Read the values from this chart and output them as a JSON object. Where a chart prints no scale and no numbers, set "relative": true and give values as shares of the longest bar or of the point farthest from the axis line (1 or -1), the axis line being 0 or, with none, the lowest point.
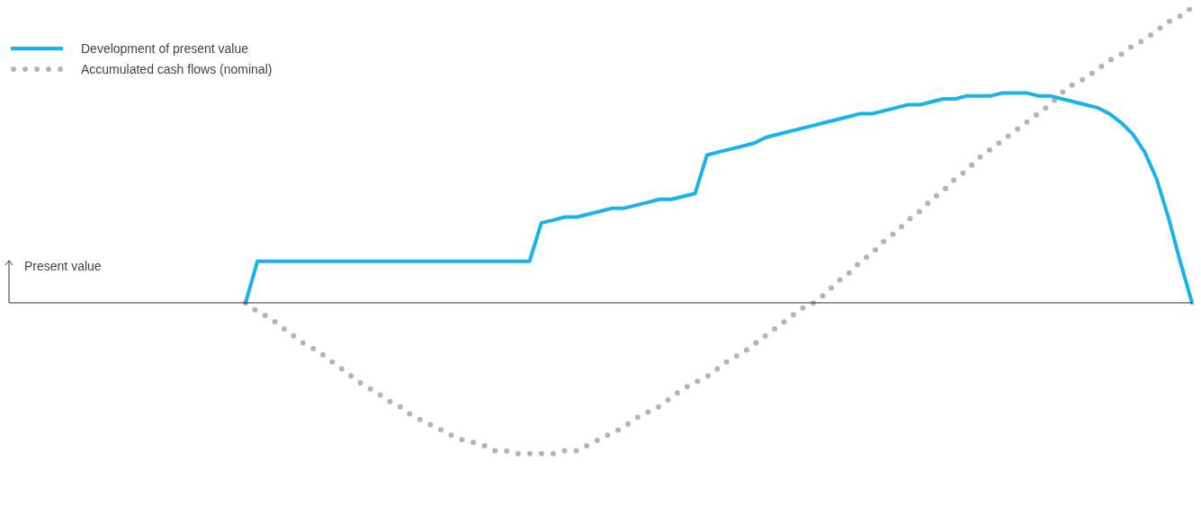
{
  "chart_data": {
    "type": "line",
    "relative": true,
    "ylabel": "Present value",
    "legend": "top left",
    "categories": [
      null,
      null,
      null,
      null,
      null,
      null,
      null,
      null,
      null,
      null,
      null,
      null,
      null,
      null,
      null,
      null,
      null,
      null,
      null,
      null,
      null,
      null,
      null,
      null,
      null,
      null,
      null,
      null,
      null,
      null,
      null,
      null,
      null,
      null,
      null,
      null,
      null,
      null,
      null,
      null,
      null,
      null,
      null,
      null,
      null,
      null,
      null,
      null,
      null,
      null,
      null,
      null,
      null,
      null,
      null,
      null,
      null,
      null,
      null,
      null,
      null,
      null,
      null,
      null,
      null,
      null,
      null,
      null,
      null,
      null,
      null,
      null,
      null,
      null,
      null,
      null,
      null,
      null,
      null,
      null,
      null,
      null,
      null,
      null,
      null,
      null,
      null,
      null,
      null,
      null,
      null,
      null,
      null,
      null,
      null,
      null,
      null,
      null,
      null,
      null,
      null
    ],
    "series": [
      {
        "name": "Development of present value",
        "color": "#19b3ec",
        "line_style": "solid",
        "values": [
          null,
          null,
          null,
          null,
          null,
          null,
          null,
          null,
          null,
          null,
          null,
          null,
          null,
          null,
          null,
          null,
          null,
          null,
          null,
          null,
          0,
          0.14,
          0.14,
          0.14,
          0.14,
          0.14,
          0.14,
          0.14,
          0.14,
          0.14,
          0.14,
          0.14,
          0.14,
          0.14,
          0.14,
          0.14,
          0.14,
          0.14,
          0.14,
          0.14,
          0.14,
          0.14,
          0.14,
          0.14,
          0.14,
          0.27,
          0.28,
          0.29,
          0.29,
          0.3,
          0.31,
          0.32,
          0.32,
          0.33,
          0.34,
          0.35,
          0.35,
          0.36,
          0.37,
          0.5,
          0.51,
          0.52,
          0.53,
          0.54,
          0.56,
          0.57,
          0.58,
          0.59,
          0.6,
          0.61,
          0.62,
          0.63,
          0.64,
          0.64,
          0.65,
          0.66,
          0.67,
          0.67,
          0.68,
          0.69,
          0.69,
          0.7,
          0.7,
          0.7,
          0.71,
          0.71,
          0.71,
          0.7,
          0.7,
          0.69,
          0.68,
          0.67,
          0.66,
          0.64,
          0.61,
          0.57,
          0.51,
          0.42,
          0.29,
          0.14,
          0
        ]
      },
      {
        "name": "Accumulated cash flows (nominal)",
        "color": "#b4b4b4",
        "line_style": "dotted",
        "values": [
          null,
          null,
          null,
          null,
          null,
          null,
          null,
          null,
          null,
          null,
          null,
          null,
          null,
          null,
          null,
          null,
          null,
          null,
          null,
          null,
          0,
          -0.03,
          -0.05,
          -0.08,
          -0.11,
          -0.14,
          -0.16,
          -0.19,
          -0.22,
          -0.25,
          -0.28,
          -0.3,
          -0.33,
          -0.35,
          -0.38,
          -0.4,
          -0.42,
          -0.44,
          -0.46,
          -0.47,
          -0.48,
          -0.5,
          -0.5,
          -0.51,
          -0.51,
          -0.51,
          -0.51,
          -0.5,
          -0.5,
          -0.48,
          -0.46,
          -0.44,
          -0.42,
          -0.39,
          -0.37,
          -0.35,
          -0.32,
          -0.29,
          -0.27,
          -0.25,
          -0.22,
          -0.19,
          -0.17,
          -0.14,
          -0.11,
          -0.08,
          -0.05,
          -0.02,
          0,
          0.03,
          0.07,
          0.1,
          0.14,
          0.17,
          0.21,
          0.24,
          0.28,
          0.31,
          0.35,
          0.38,
          0.42,
          0.45,
          0.49,
          0.52,
          0.55,
          0.58,
          0.61,
          0.64,
          0.67,
          0.71,
          0.74,
          0.76,
          0.79,
          0.82,
          0.84,
          0.87,
          0.89,
          0.92,
          0.95,
          0.97,
          1.0
        ]
      }
    ]
  }
}
